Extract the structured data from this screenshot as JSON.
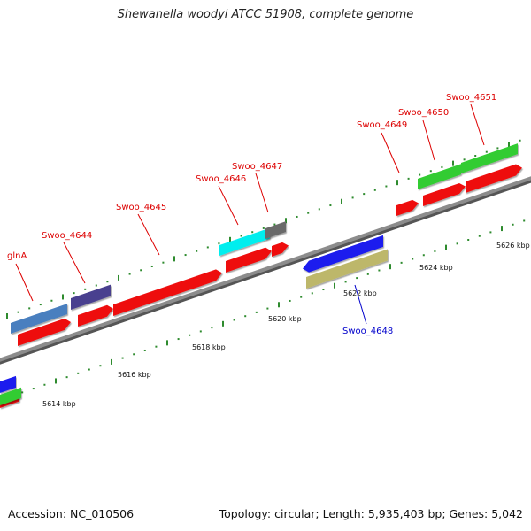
{
  "title": "Shewanella woodyi ATCC 51908, complete genome",
  "footer": {
    "accession": "Accession: NC_010506",
    "summary": "Topology: circular; Length: 5,935,403 bp; Genes: 5,042"
  },
  "colors": {
    "backbone": "#8c8c8c",
    "tick": "#2e8b2e",
    "label_top": "#dd0000",
    "label_bottom": "#0000cc",
    "cds": "#ee1111",
    "gene_steelblue": "#4a7fbf",
    "gene_slate": "#4a3f8f",
    "gene_cyan": "#00eeee",
    "gene_gray": "#6b6b6b",
    "gene_green": "#33cc33",
    "gene_blue": "#1a1aee",
    "gene_khaki": "#bdb76b"
  },
  "scale": {
    "ticks": [
      "5614 kbp",
      "5616 kbp",
      "5618 kbp",
      "5620 kbp",
      "5622 kbp",
      "5624 kbp",
      "5626 kbp"
    ]
  },
  "genes": [
    {
      "label": "glnA",
      "strand": "top"
    },
    {
      "label": "Swoo_4644",
      "strand": "top"
    },
    {
      "label": "Swoo_4645",
      "strand": "top"
    },
    {
      "label": "Swoo_4646",
      "strand": "top"
    },
    {
      "label": "Swoo_4647",
      "strand": "top"
    },
    {
      "label": "Swoo_4649",
      "strand": "top"
    },
    {
      "label": "Swoo_4650",
      "strand": "top"
    },
    {
      "label": "Swoo_4651",
      "strand": "top"
    },
    {
      "label": "Swoo_4648",
      "strand": "bottom"
    }
  ]
}
